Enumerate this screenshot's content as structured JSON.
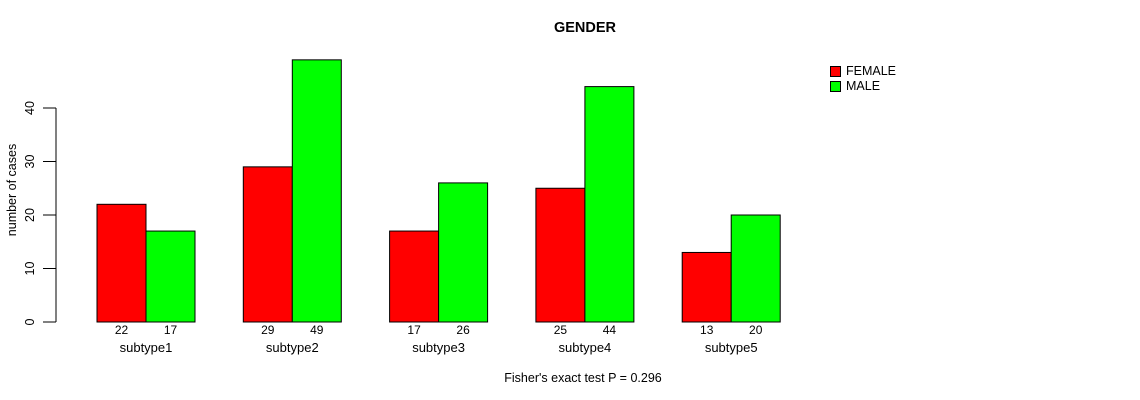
{
  "title": "GENDER",
  "ylabel": "number of cases",
  "caption": "Fisher's exact test P = 0.296",
  "legend": {
    "items": [
      {
        "label": "FEMALE",
        "color": "#FF0000"
      },
      {
        "label": "MALE",
        "color": "#00FF00"
      }
    ]
  },
  "chart_data": {
    "type": "bar",
    "title": "GENDER",
    "xlabel": "",
    "ylabel": "number of cases",
    "categories": [
      "subtype1",
      "subtype2",
      "subtype3",
      "subtype4",
      "subtype5"
    ],
    "series": [
      {
        "name": "FEMALE",
        "color": "#FF0000",
        "values": [
          22,
          29,
          17,
          25,
          13
        ]
      },
      {
        "name": "MALE",
        "color": "#00FF00",
        "values": [
          17,
          49,
          26,
          44,
          20
        ]
      }
    ],
    "yticks": [
      0,
      10,
      20,
      30,
      40
    ],
    "ylim": [
      0,
      49
    ],
    "grid": false,
    "legend_position": "top-right",
    "bar_value_labels_shown": true,
    "annotation": "Fisher's exact test P = 0.296"
  }
}
